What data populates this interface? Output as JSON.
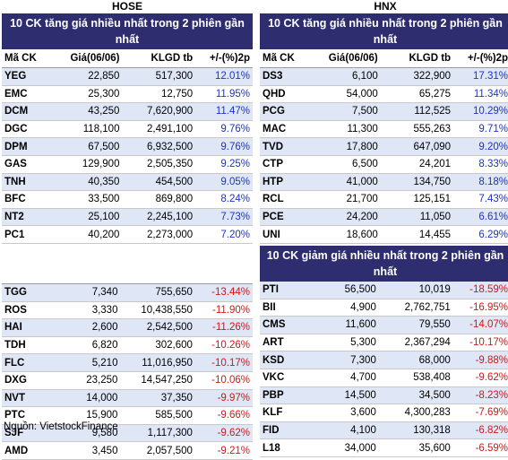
{
  "hose": {
    "exchange": "HOSE",
    "title": "10 CK tăng giá nhiều nhất trong 2 phiên gần nhất",
    "headers": [
      "Mã CK",
      "Giá(06/06)",
      "KLGD tb",
      "+/-(%)2p"
    ],
    "gainers": [
      [
        "YEG",
        "22,850",
        "517,300",
        "12.01%"
      ],
      [
        "EMC",
        "25,300",
        "12,750",
        "11.95%"
      ],
      [
        "DCM",
        "43,250",
        "7,620,900",
        "11.47%"
      ],
      [
        "DGC",
        "118,100",
        "2,491,100",
        "9.76%"
      ],
      [
        "DPM",
        "67,500",
        "6,932,500",
        "9.76%"
      ],
      [
        "GAS",
        "129,900",
        "2,505,350",
        "9.25%"
      ],
      [
        "TNH",
        "40,350",
        "454,500",
        "9.05%"
      ],
      [
        "BFC",
        "33,500",
        "869,800",
        "8.24%"
      ],
      [
        "NT2",
        "25,100",
        "2,245,100",
        "7.73%"
      ],
      [
        "PC1",
        "40,200",
        "2,273,000",
        "7.20%"
      ]
    ],
    "losers": [
      [
        "TGG",
        "7,340",
        "755,650",
        "-13.44%"
      ],
      [
        "ROS",
        "3,330",
        "10,438,550",
        "-11.90%"
      ],
      [
        "HAI",
        "2,600",
        "2,542,500",
        "-11.26%"
      ],
      [
        "TDH",
        "6,820",
        "302,600",
        "-10.26%"
      ],
      [
        "FLC",
        "5,210",
        "11,016,950",
        "-10.17%"
      ],
      [
        "DXG",
        "23,250",
        "14,547,250",
        "-10.06%"
      ],
      [
        "NVT",
        "14,000",
        "37,350",
        "-9.97%"
      ],
      [
        "PTC",
        "15,900",
        "585,500",
        "-9.66%"
      ],
      [
        "SJF",
        "9,580",
        "1,117,300",
        "-9.62%"
      ],
      [
        "AMD",
        "3,450",
        "2,057,500",
        "-9.21%"
      ]
    ]
  },
  "hnx": {
    "exchange": "HNX",
    "title": "10 CK tăng giá nhiều nhất trong 2 phiên gần nhất",
    "headers": [
      "Mã CK",
      "Giá(06/06)",
      "KLGD tb",
      "+/-(%)2p"
    ],
    "gainers": [
      [
        "DS3",
        "6,100",
        "322,900",
        "17.31%"
      ],
      [
        "QHD",
        "54,000",
        "65,275",
        "11.34%"
      ],
      [
        "PCG",
        "7,500",
        "112,525",
        "10.29%"
      ],
      [
        "MAC",
        "11,300",
        "555,263",
        "9.71%"
      ],
      [
        "TVD",
        "17,800",
        "647,090",
        "9.20%"
      ],
      [
        "CTP",
        "6,500",
        "24,201",
        "8.33%"
      ],
      [
        "HTP",
        "41,000",
        "134,750",
        "8.18%"
      ],
      [
        "RCL",
        "21,700",
        "125,151",
        "7.43%"
      ],
      [
        "PCE",
        "24,200",
        "11,050",
        "6.61%"
      ],
      [
        "UNI",
        "18,600",
        "14,455",
        "6.29%"
      ]
    ],
    "losers_title": "10 CK giảm giá nhiều nhất trong 2 phiên gần nhất",
    "losers": [
      [
        "PTI",
        "56,500",
        "10,019",
        "-18.59%"
      ],
      [
        "BII",
        "4,900",
        "2,762,751",
        "-16.95%"
      ],
      [
        "CMS",
        "11,600",
        "79,550",
        "-14.07%"
      ],
      [
        "ART",
        "5,300",
        "2,367,294",
        "-10.17%"
      ],
      [
        "KSD",
        "7,300",
        "68,000",
        "-9.88%"
      ],
      [
        "VKC",
        "4,700",
        "538,408",
        "-9.62%"
      ],
      [
        "PBP",
        "14,500",
        "34,500",
        "-8.23%"
      ],
      [
        "KLF",
        "3,600",
        "4,300,283",
        "-7.69%"
      ],
      [
        "FID",
        "4,100",
        "130,318",
        "-6.82%"
      ],
      [
        "L18",
        "34,000",
        "35,600",
        "-6.59%"
      ]
    ]
  },
  "source": "Nguồn: VietstockFinance",
  "colors": {
    "header_bg": "#2e2d6f",
    "alt_row": "#dfe6f6",
    "positive": "#1a32d0",
    "negative": "#e01010"
  }
}
